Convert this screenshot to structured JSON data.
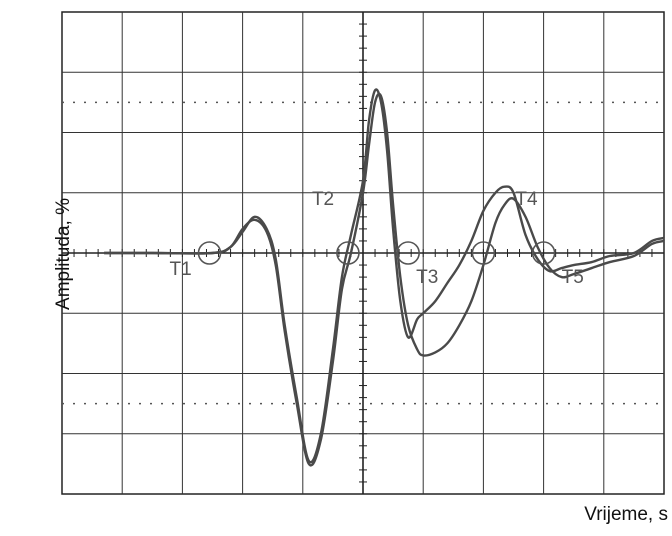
{
  "chart_data": {
    "type": "line",
    "title": "",
    "xlabel": "Vrijeme, s",
    "ylabel": "Amplituda, %",
    "xlim": [
      0,
      10
    ],
    "ylim": [
      -4,
      4
    ],
    "grid": true,
    "dotted_lines_y": [
      2.5,
      -2.5
    ],
    "trace_color": "#4a4a4a",
    "series": [
      {
        "values_x": [
          0.7,
          1.5,
          2.5,
          2.8,
          3.0,
          3.2,
          3.4,
          3.55,
          3.7,
          3.9,
          4.1,
          4.3,
          4.5,
          4.65,
          4.8,
          5.0,
          5.1,
          5.2,
          5.3,
          5.4,
          5.5,
          5.62,
          5.75,
          5.9,
          6.0,
          6.2,
          6.4,
          6.6,
          6.8,
          7.0,
          7.2,
          7.35,
          7.5,
          7.7,
          7.9,
          8.1,
          8.3,
          8.5,
          8.8,
          9.1,
          9.5,
          9.8,
          10.0
        ],
        "values_y": [
          0.0,
          0.0,
          0.0,
          0.1,
          0.4,
          0.55,
          0.35,
          -0.2,
          -1.3,
          -2.5,
          -3.5,
          -3.1,
          -1.8,
          -0.6,
          0.0,
          1.0,
          1.8,
          2.5,
          2.6,
          2.0,
          0.8,
          -0.4,
          -1.2,
          -1.6,
          -1.7,
          -1.65,
          -1.5,
          -1.2,
          -0.8,
          -0.2,
          0.5,
          0.8,
          0.9,
          0.6,
          0.1,
          -0.25,
          -0.4,
          -0.35,
          -0.25,
          -0.15,
          -0.05,
          0.15,
          0.2
        ]
      },
      {
        "values_x": [
          0.7,
          1.5,
          2.5,
          2.8,
          3.0,
          3.2,
          3.4,
          3.55,
          3.7,
          3.9,
          4.1,
          4.3,
          4.5,
          4.65,
          4.8,
          5.0,
          5.1,
          5.2,
          5.3,
          5.4,
          5.5,
          5.62,
          5.75,
          5.9,
          6.0,
          6.2,
          6.4,
          6.6,
          6.8,
          7.0,
          7.2,
          7.35,
          7.5,
          7.7,
          7.9,
          8.1,
          8.3,
          8.5,
          8.8,
          9.1,
          9.5,
          9.8,
          10.0
        ],
        "values_y": [
          0.0,
          0.0,
          0.0,
          0.1,
          0.35,
          0.6,
          0.4,
          -0.1,
          -1.2,
          -2.4,
          -3.45,
          -3.0,
          -1.6,
          -0.4,
          0.3,
          1.2,
          2.2,
          2.7,
          2.5,
          1.7,
          0.4,
          -0.8,
          -1.4,
          -1.1,
          -1.0,
          -0.8,
          -0.5,
          -0.2,
          0.2,
          0.7,
          1.0,
          1.1,
          1.0,
          0.3,
          -0.1,
          -0.3,
          -0.25,
          -0.2,
          -0.15,
          -0.05,
          0.0,
          0.2,
          0.25
        ]
      }
    ],
    "markers": [
      {
        "name": "T1",
        "x": 2.45,
        "y": 0
      },
      {
        "name": "T2",
        "x": 4.75,
        "y": 0
      },
      {
        "name": "T3",
        "x": 5.75,
        "y": 0
      },
      {
        "name": "T4",
        "x": 7.0,
        "y": 0
      },
      {
        "name": "T5",
        "x": 8.0,
        "y": 0
      }
    ]
  }
}
